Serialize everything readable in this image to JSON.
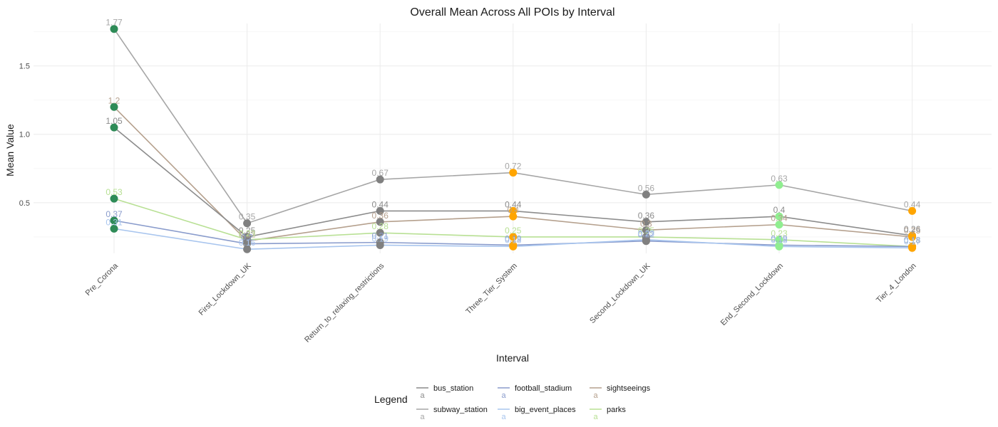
{
  "chart_data": {
    "type": "line",
    "title": "Overall Mean Across All POIs by Interval",
    "xlabel": "Interval",
    "ylabel": "Mean Value",
    "categories": [
      "Pre_Corona",
      "First_Lockdown_UK",
      "Return_to_relaxing_restrictions",
      "Three_Tier_System",
      "Second_Lockdown_UK",
      "End_Second_Lockdown",
      "Tier_4_London"
    ],
    "y_ticks": [
      "0.5",
      "1.0",
      "1.5"
    ],
    "ylim": [
      0.13,
      1.81
    ],
    "grid": true,
    "legend_position": "bottom",
    "legend_title": "Legend",
    "legend_glyph": "a",
    "series": [
      {
        "name": "subway_station",
        "color": "#a6a6a6",
        "values": [
          1.77,
          0.35,
          0.67,
          0.72,
          0.56,
          0.63,
          0.44
        ],
        "labels": [
          "1.77",
          "0.35",
          "0.67",
          "0.72",
          "0.56",
          "0.63",
          "0.44"
        ]
      },
      {
        "name": "sightseeings",
        "color": "#b5a08d",
        "values": [
          1.2,
          0.22,
          0.36,
          0.4,
          0.3,
          0.34,
          0.25
        ],
        "labels": [
          "1.2",
          "0.22",
          "0.36",
          "0.4",
          "0.3",
          "0.34",
          "0.25"
        ]
      },
      {
        "name": "bus_station",
        "color": "#8c8c8c",
        "values": [
          1.05,
          0.25,
          0.44,
          0.44,
          0.36,
          0.4,
          0.26
        ],
        "labels": [
          "1.05",
          "0.25",
          "0.44",
          "0.44",
          "0.36",
          "0.4",
          "0.26"
        ]
      },
      {
        "name": "parks",
        "color": "#b8e094",
        "values": [
          0.53,
          0.23,
          0.28,
          0.25,
          0.25,
          0.23,
          0.18
        ],
        "labels": [
          "0.53",
          "0.23",
          "0.28",
          "0.25",
          "0.25",
          "0.23",
          "0.18"
        ]
      },
      {
        "name": "football_stadium",
        "color": "#8a9ccc",
        "values": [
          0.37,
          0.2,
          0.21,
          0.19,
          0.22,
          0.19,
          0.18
        ],
        "labels": [
          "0.37",
          "0.2",
          "0.21",
          "0.19",
          "0.22",
          "0.19",
          "0.18"
        ]
      },
      {
        "name": "big_event_places",
        "color": "#a8c5ee",
        "values": [
          0.31,
          0.16,
          0.19,
          0.18,
          0.23,
          0.18,
          0.17
        ],
        "labels": [
          "0.31",
          "0.16",
          "0.19",
          "0.18",
          "0.23",
          "0.18",
          "0.17"
        ]
      }
    ],
    "point_colors": [
      [
        "#2e8b57",
        "#808080",
        "#808080",
        "#ffa500",
        "#808080",
        "#90ee90",
        "#ffa500"
      ],
      [
        "#2e8b57",
        "#808080",
        "#808080",
        "#ffa500",
        "#808080",
        "#90ee90",
        "#ffa500"
      ],
      [
        "#2e8b57",
        "#808080",
        "#808080",
        "#ffa500",
        "#808080",
        "#90ee90",
        "#ffa500"
      ],
      [
        "#2e8b57",
        "#808080",
        "#808080",
        "#ffa500",
        "#808080",
        "#90ee90",
        "#ffa500"
      ],
      [
        "#2e8b57",
        "#808080",
        "#808080",
        "#ffa500",
        "#808080",
        "#90ee90",
        "#ffa500"
      ],
      [
        "#2e8b57",
        "#808080",
        "#808080",
        "#ffa500",
        "#808080",
        "#90ee90",
        "#ffa500"
      ]
    ],
    "legend_rows": [
      [
        "bus_station",
        "football_stadium",
        "sightseeings"
      ],
      [
        "subway_station",
        "big_event_places",
        "parks"
      ]
    ]
  }
}
